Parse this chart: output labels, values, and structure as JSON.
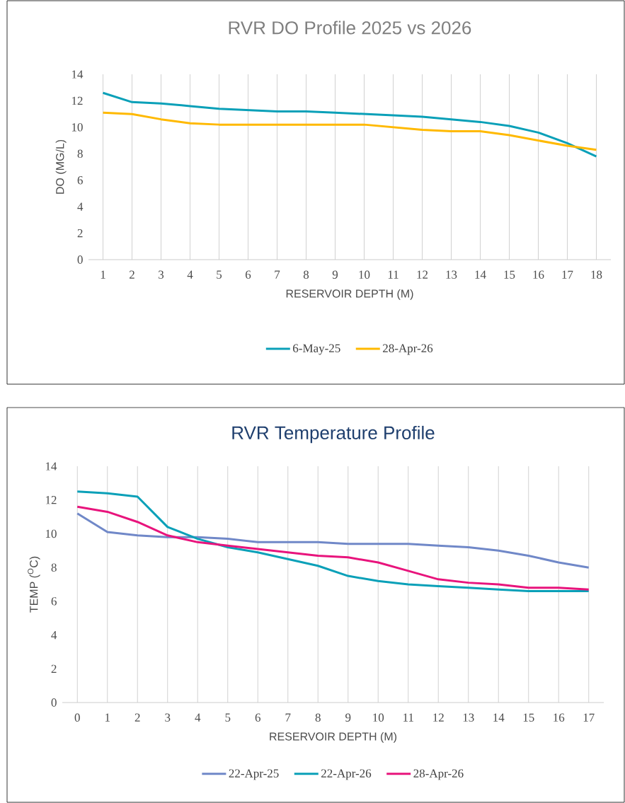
{
  "chart_data": [
    {
      "type": "line",
      "title": "RVR DO Profile 2025 vs 2026",
      "xlabel": "RESERVOIR DEPTH (M)",
      "ylabel": "DO (MG/L)",
      "categories": [
        "1",
        "2",
        "3",
        "4",
        "5",
        "6",
        "7",
        "8",
        "9",
        "10",
        "11",
        "12",
        "13",
        "14",
        "15",
        "16",
        "17",
        "18"
      ],
      "series": [
        {
          "name": "6-May-25",
          "color": "#0aa0b8",
          "values": [
            12.6,
            11.9,
            11.8,
            11.6,
            11.4,
            11.3,
            11.2,
            11.2,
            11.1,
            11.0,
            10.9,
            10.8,
            10.6,
            10.4,
            10.1,
            9.6,
            8.8,
            7.8
          ]
        },
        {
          "name": "28-Apr-26",
          "color": "#ffb900",
          "values": [
            11.1,
            11.0,
            10.6,
            10.3,
            10.2,
            10.2,
            10.2,
            10.2,
            10.2,
            10.2,
            10.0,
            9.8,
            9.7,
            9.7,
            9.4,
            9.0,
            8.6,
            8.3
          ]
        }
      ],
      "ylim": [
        0,
        14
      ],
      "yticks": [
        0,
        2,
        4,
        6,
        8,
        10,
        12,
        14
      ],
      "grid": "x",
      "legend": "bottom"
    },
    {
      "type": "line",
      "title": "RVR Temperature Profile",
      "xlabel": "RESERVOIR DEPTH (M)",
      "ylabel": "TEMP ($^{O}$C)",
      "categories": [
        "0",
        "1",
        "2",
        "3",
        "4",
        "5",
        "6",
        "7",
        "8",
        "9",
        "10",
        "11",
        "12",
        "13",
        "14",
        "15",
        "16",
        "17"
      ],
      "series": [
        {
          "name": "22-Apr-25",
          "color": "#7088c8",
          "values": [
            11.2,
            10.1,
            9.9,
            9.8,
            9.8,
            9.7,
            9.5,
            9.5,
            9.5,
            9.4,
            9.4,
            9.4,
            9.3,
            9.2,
            9.0,
            8.7,
            8.3,
            8.0
          ]
        },
        {
          "name": "22-Apr-26",
          "color": "#0aa0b8",
          "values": [
            12.5,
            12.4,
            12.2,
            10.4,
            9.7,
            9.2,
            8.9,
            8.5,
            8.1,
            7.5,
            7.2,
            7.0,
            6.9,
            6.8,
            6.7,
            6.6,
            6.6,
            6.6
          ]
        },
        {
          "name": "28-Apr-26",
          "color": "#e8147c",
          "values": [
            11.6,
            11.3,
            10.7,
            9.9,
            9.5,
            9.3,
            9.1,
            8.9,
            8.7,
            8.6,
            8.3,
            7.8,
            7.3,
            7.1,
            7.0,
            6.8,
            6.8,
            6.7
          ]
        }
      ],
      "ylim": [
        0,
        14
      ],
      "yticks": [
        0,
        2,
        4,
        6,
        8,
        10,
        12,
        14
      ],
      "grid": "x",
      "legend": "bottom"
    }
  ]
}
